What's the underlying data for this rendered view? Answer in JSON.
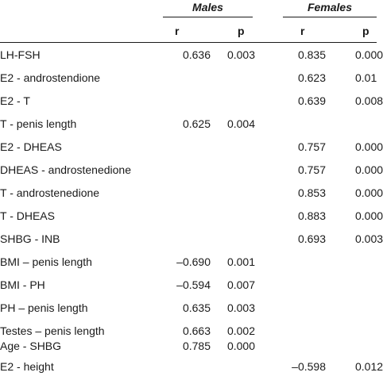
{
  "headers": {
    "males": "Males",
    "females": "Females",
    "r": "r",
    "p": "p"
  },
  "rows": [
    {
      "label": "LH-FSH",
      "male_r": "0.636",
      "male_p": "0.003",
      "female_r": "0.835",
      "female_p": "0.000"
    },
    {
      "label": "E2 - androstendione",
      "male_r": "",
      "male_p": "",
      "female_r": "0.623",
      "female_p": "0.01"
    },
    {
      "label": "E2 - T",
      "male_r": "",
      "male_p": "",
      "female_r": "0.639",
      "female_p": "0.008"
    },
    {
      "label": "T - penis length",
      "male_r": "0.625",
      "male_p": "0.004",
      "female_r": "",
      "female_p": ""
    },
    {
      "label": "E2 - DHEAS",
      "male_r": "",
      "male_p": "",
      "female_r": "0.757",
      "female_p": "0.000"
    },
    {
      "label": "DHEAS - androstenedione",
      "male_r": "",
      "male_p": "",
      "female_r": "0.757",
      "female_p": "0.000"
    },
    {
      "label": "T - androstenedione",
      "male_r": "",
      "male_p": "",
      "female_r": "0.853",
      "female_p": "0.000"
    },
    {
      "label": "T - DHEAS",
      "male_r": "",
      "male_p": "",
      "female_r": "0.883",
      "female_p": "0.000"
    },
    {
      "label": "SHBG - INB",
      "male_r": "",
      "male_p": "",
      "female_r": "0.693",
      "female_p": "0.003"
    },
    {
      "label": "BMI – penis length",
      "male_r": "–0.690",
      "male_p": "0.001",
      "female_r": "",
      "female_p": ""
    },
    {
      "label": "BMI - PH",
      "male_r": "–0.594",
      "male_p": "0.007",
      "female_r": "",
      "female_p": ""
    },
    {
      "label": "PH – penis length",
      "male_r": "0.635",
      "male_p": "0.003",
      "female_r": "",
      "female_p": ""
    },
    {
      "label": "Testes – penis length",
      "male_r": "0.663",
      "male_p": "0.002",
      "female_r": "",
      "female_p": ""
    },
    {
      "label": "Age - SHBG",
      "male_r": "0.785",
      "male_p": "0.000",
      "female_r": "",
      "female_p": ""
    },
    {
      "label": "E2 - height",
      "male_r": "",
      "male_p": "",
      "female_r": "–0.598",
      "female_p": "0.012"
    }
  ]
}
